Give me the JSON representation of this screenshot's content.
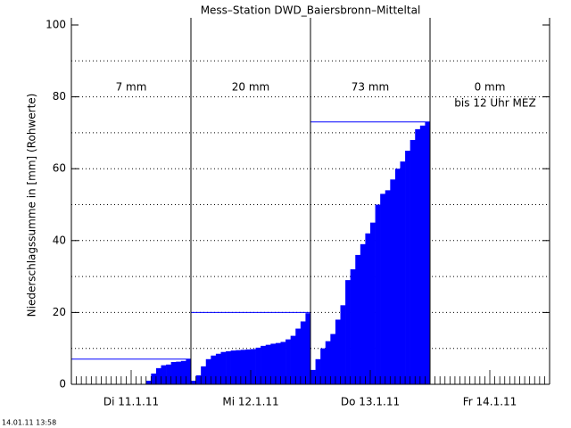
{
  "chart_data": {
    "type": "cumulative-bar",
    "title": "Mess–Station DWD_Baiersbronn–Mitteltal",
    "y_label": "Niederschlagssumme in [mm] (Rohwerte)",
    "ylim": [
      0,
      100
    ],
    "yticks": [
      0,
      20,
      40,
      60,
      80,
      100
    ],
    "minor_yticks": [
      10,
      30,
      50,
      70,
      90
    ],
    "grid": true,
    "color": "#0000ff",
    "days": [
      {
        "label": "Di 11.1.11",
        "total": 7,
        "total_label": "7 mm",
        "values": [
          0,
          0,
          0,
          0,
          0,
          0,
          0,
          0,
          0,
          0,
          0,
          0,
          0,
          0,
          0,
          1,
          3,
          4.5,
          5.3,
          5.5,
          6.2,
          6.3,
          6.5,
          7
        ]
      },
      {
        "label": "Mi 12.1.11",
        "total": 20,
        "total_label": "20 mm",
        "values": [
          1,
          2.5,
          5,
          7,
          8,
          8.5,
          9,
          9.2,
          9.4,
          9.5,
          9.6,
          9.7,
          9.8,
          10.2,
          10.7,
          11,
          11.3,
          11.5,
          11.8,
          12.5,
          13.5,
          15.5,
          17.5,
          19.8
        ]
      },
      {
        "label": "Do 13.1.11",
        "total": 73,
        "total_label": "73 mm",
        "values": [
          4,
          7,
          10,
          12,
          14,
          18,
          22,
          29,
          32,
          36,
          39,
          42,
          45,
          50,
          53,
          54,
          57,
          60,
          62,
          65,
          68,
          71,
          72,
          73
        ]
      },
      {
        "label": "Fr 14.1.11",
        "total": 0,
        "total_label": "0 mm",
        "values": [
          0,
          0,
          0,
          0,
          0,
          0,
          0,
          0,
          0,
          0,
          0,
          0
        ]
      }
    ],
    "annotation": "bis 12 Uhr MEZ",
    "footer": "14.01.11 13:58"
  }
}
